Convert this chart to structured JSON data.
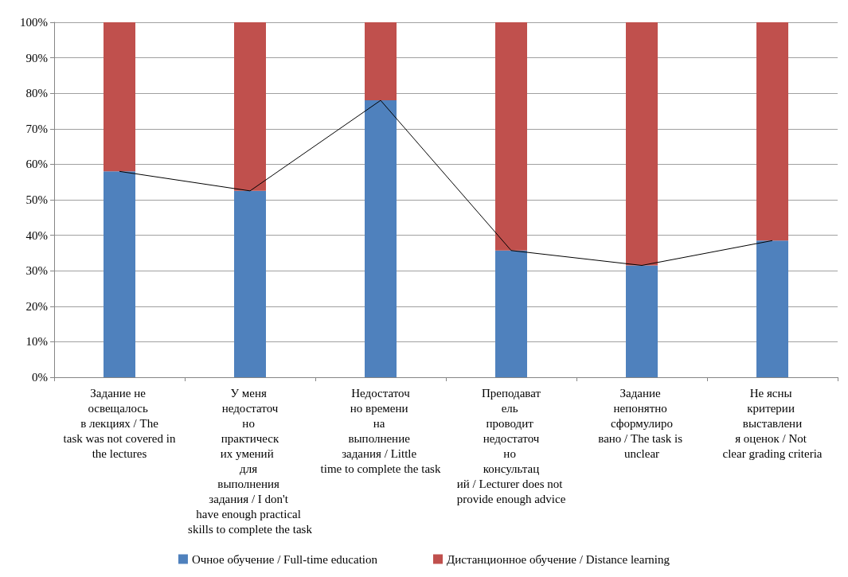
{
  "chart_data": {
    "type": "bar",
    "stacked": true,
    "categories": [
      "Задание не освещалось в лекциях / The task was not covered in the lectures",
      "У меня недостаточно практических умений  для выполнения задания / I don't have enough practical skills to complete the task",
      "Недостаточно времени на выполнение задания / Little time to complete the task",
      "Преподаватель проводит недостаточно консультаций / Lecturer does not provide enough advice",
      "Задание непонятно сформулировано / The task is unclear",
      "Не ясны критерии выставления оценок / Not clear grading criteria"
    ],
    "series": [
      {
        "name": "Очное обучение / Full-time education",
        "color": "#4f81bd",
        "values": [
          58,
          52.5,
          78,
          35.7,
          31.5,
          38.5
        ]
      },
      {
        "name": "Дистанционное обучение / Distance learning",
        "color": "#c0504d",
        "values": [
          42,
          47.5,
          22,
          64.3,
          68.5,
          61.5
        ]
      },
      {
        "type": "line",
        "color": "#000000",
        "marker": "none",
        "values": [
          58,
          52.5,
          78,
          35.7,
          31.5,
          38.5
        ]
      }
    ],
    "ylim": [
      0,
      100
    ],
    "yticks": [
      {
        "value": 0,
        "label": "0%"
      },
      {
        "value": 10,
        "label": "10%"
      },
      {
        "value": 20,
        "label": "20%"
      },
      {
        "value": 30,
        "label": "30%"
      },
      {
        "value": 40,
        "label": "40%"
      },
      {
        "value": 50,
        "label": "50%"
      },
      {
        "value": 60,
        "label": "60%"
      },
      {
        "value": 70,
        "label": "70%"
      },
      {
        "value": 80,
        "label": "80%"
      },
      {
        "value": 90,
        "label": "90%"
      },
      {
        "value": 100,
        "label": "100%"
      }
    ],
    "grid": "y",
    "legend": "bottom"
  }
}
